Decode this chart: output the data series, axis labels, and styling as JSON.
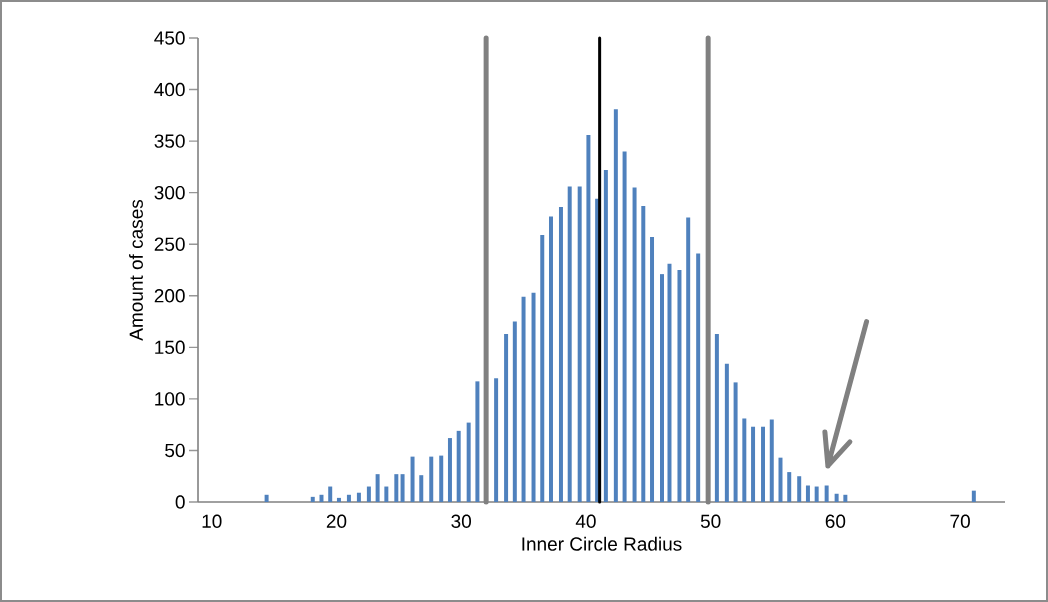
{
  "chart_data": {
    "type": "bar",
    "xlabel": "Inner Circle Radius",
    "ylabel": "Amount of cases",
    "color": "#4f81bd",
    "x": [
      14.4,
      18.1,
      18.8,
      19.5,
      20.2,
      21.0,
      21.8,
      22.6,
      23.3,
      24.0,
      24.8,
      25.3,
      26.1,
      26.8,
      27.6,
      28.4,
      29.1,
      29.8,
      30.6,
      31.3,
      32.0,
      32.8,
      33.6,
      34.3,
      35.0,
      35.8,
      36.5,
      37.2,
      38.0,
      38.7,
      39.5,
      40.2,
      40.9,
      41.6,
      42.4,
      43.1,
      43.9,
      44.6,
      45.3,
      46.1,
      46.7,
      47.5,
      48.2,
      49.0,
      49.8,
      50.5,
      51.3,
      52.0,
      52.7,
      53.4,
      54.2,
      54.9,
      55.6,
      56.3,
      57.1,
      57.8,
      58.5,
      59.3,
      60.1,
      60.8,
      71.1
    ],
    "values": [
      7,
      5,
      7,
      15,
      4,
      7,
      9,
      15,
      27,
      15,
      27,
      27,
      44,
      26,
      44,
      45,
      62,
      69,
      77,
      117,
      null,
      120,
      163,
      175,
      199,
      203,
      259,
      277,
      286,
      306,
      306,
      356,
      294,
      322,
      381,
      340,
      305,
      287,
      257,
      221,
      231,
      225,
      276,
      241,
      null,
      163,
      134,
      116,
      81,
      73,
      73,
      80,
      43,
      29,
      25,
      16,
      15,
      16,
      8,
      7,
      11
    ],
    "xlim": [
      8.9,
      73.6
    ],
    "xticks": [
      10,
      20,
      30,
      40,
      50,
      60,
      70
    ],
    "ylim": [
      0,
      450
    ],
    "yticks": [
      0,
      50,
      100,
      150,
      200,
      250,
      300,
      350,
      400,
      450
    ],
    "ref_lines": [
      {
        "axis": "x",
        "value": 32.0,
        "color": "#808080",
        "line_style": "solid"
      },
      {
        "axis": "x",
        "value": 41.1,
        "color": "#000000",
        "line_style": "solid"
      },
      {
        "axis": "x",
        "value": 49.8,
        "color": "#808080",
        "line_style": "solid"
      }
    ]
  }
}
